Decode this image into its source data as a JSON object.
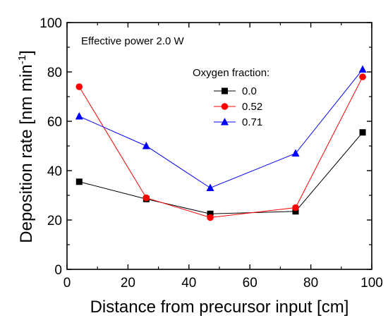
{
  "chart_data": {
    "type": "line",
    "xlabel": "Distance from precursor input [cm]",
    "ylabel_main": "Deposition rate [nm min",
    "ylabel_sup": "-1",
    "ylabel_end": "]",
    "xlim": [
      0,
      100
    ],
    "ylim": [
      0,
      100
    ],
    "x_ticks": [
      "0",
      "20",
      "40",
      "60",
      "80",
      "100"
    ],
    "y_ticks": [
      "0",
      "20",
      "40",
      "60",
      "80",
      "100"
    ],
    "annotation": "Effective power 2.0 W",
    "legend_title": "Oxygen fraction:",
    "legend_position": "top-right",
    "grid": false,
    "x": [
      4,
      26,
      47,
      75,
      97
    ],
    "series": [
      {
        "name": "0.0",
        "marker": "square",
        "color": "#000000",
        "values": [
          35.5,
          28.5,
          22.5,
          23.5,
          55.5
        ]
      },
      {
        "name": "0.52",
        "marker": "circle",
        "color": "#ff0000",
        "values": [
          74,
          29,
          21,
          25,
          78
        ]
      },
      {
        "name": "0.71",
        "marker": "triangle",
        "color": "#0000ff",
        "values": [
          62,
          50,
          33,
          47,
          81
        ]
      }
    ]
  }
}
